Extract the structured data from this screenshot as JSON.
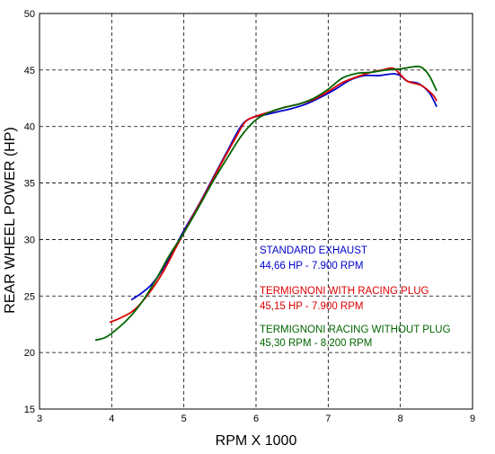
{
  "chart_data": {
    "type": "line",
    "title": "",
    "xlabel": "RPM X 1000",
    "ylabel": "REAR WHEEL POWER (HP)",
    "xlim": [
      3,
      9
    ],
    "ylim": [
      15,
      50
    ],
    "x_ticks": [
      "3",
      "4",
      "5",
      "6",
      "7",
      "8",
      "9"
    ],
    "y_ticks": [
      "15",
      "20",
      "25",
      "30",
      "35",
      "40",
      "45",
      "50"
    ],
    "grid": true,
    "series": [
      {
        "color": "#0000cc",
        "points": [
          [
            4.28,
            24.7
          ],
          [
            4.4,
            25.2
          ],
          [
            4.55,
            26.0
          ],
          [
            4.7,
            27.3
          ],
          [
            4.85,
            29.0
          ],
          [
            5.0,
            30.8
          ],
          [
            5.2,
            33.0
          ],
          [
            5.4,
            35.4
          ],
          [
            5.6,
            37.8
          ],
          [
            5.8,
            40.1
          ],
          [
            5.95,
            40.8
          ],
          [
            6.1,
            41.0
          ],
          [
            6.3,
            41.3
          ],
          [
            6.5,
            41.6
          ],
          [
            6.7,
            42.0
          ],
          [
            6.9,
            42.6
          ],
          [
            7.1,
            43.3
          ],
          [
            7.3,
            44.1
          ],
          [
            7.5,
            44.5
          ],
          [
            7.7,
            44.5
          ],
          [
            7.9,
            44.66
          ],
          [
            8.0,
            44.5
          ],
          [
            8.1,
            44.0
          ],
          [
            8.25,
            43.8
          ],
          [
            8.4,
            43.0
          ],
          [
            8.5,
            41.8
          ]
        ]
      },
      {
        "color": "#dd0000",
        "points": [
          [
            3.98,
            22.7
          ],
          [
            4.1,
            23.0
          ],
          [
            4.3,
            23.7
          ],
          [
            4.5,
            25.1
          ],
          [
            4.7,
            27.0
          ],
          [
            4.9,
            29.4
          ],
          [
            5.1,
            31.8
          ],
          [
            5.3,
            34.1
          ],
          [
            5.5,
            36.5
          ],
          [
            5.7,
            38.8
          ],
          [
            5.85,
            40.4
          ],
          [
            6.0,
            40.9
          ],
          [
            6.2,
            41.3
          ],
          [
            6.4,
            41.7
          ],
          [
            6.6,
            42.0
          ],
          [
            6.8,
            42.4
          ],
          [
            7.0,
            43.1
          ],
          [
            7.2,
            43.9
          ],
          [
            7.4,
            44.4
          ],
          [
            7.6,
            44.8
          ],
          [
            7.75,
            45.0
          ],
          [
            7.9,
            45.15
          ],
          [
            8.0,
            44.6
          ],
          [
            8.1,
            44.0
          ],
          [
            8.3,
            43.6
          ],
          [
            8.45,
            42.8
          ],
          [
            8.5,
            42.3
          ]
        ]
      },
      {
        "color": "#006600",
        "points": [
          [
            3.78,
            21.1
          ],
          [
            3.9,
            21.3
          ],
          [
            4.0,
            21.7
          ],
          [
            4.2,
            22.8
          ],
          [
            4.4,
            24.3
          ],
          [
            4.6,
            26.3
          ],
          [
            4.8,
            28.6
          ],
          [
            5.0,
            30.6
          ],
          [
            5.2,
            32.8
          ],
          [
            5.4,
            35.1
          ],
          [
            5.6,
            37.2
          ],
          [
            5.8,
            39.2
          ],
          [
            6.0,
            40.6
          ],
          [
            6.2,
            41.3
          ],
          [
            6.4,
            41.7
          ],
          [
            6.6,
            42.0
          ],
          [
            6.8,
            42.5
          ],
          [
            7.0,
            43.3
          ],
          [
            7.2,
            44.3
          ],
          [
            7.4,
            44.7
          ],
          [
            7.6,
            44.8
          ],
          [
            7.8,
            45.0
          ],
          [
            8.0,
            45.1
          ],
          [
            8.2,
            45.3
          ],
          [
            8.3,
            45.2
          ],
          [
            8.4,
            44.5
          ],
          [
            8.5,
            43.2
          ]
        ]
      }
    ],
    "annotations": [
      {
        "text": "STANDARD EXHAUST",
        "color": "#0000cc"
      },
      {
        "text": "44,66 HP - 7.900 RPM",
        "color": "#0000cc"
      },
      {
        "text": "TERMIGNONI WITH RACING PLUG",
        "color": "#dd0000"
      },
      {
        "text": "45,15 HP - 7.900 RPM",
        "color": "#dd0000"
      },
      {
        "text": "TERMIGNONI RACING WITHOUT PLUG",
        "color": "#006600"
      },
      {
        "text": "45,30 RPM - 8.200 RPM",
        "color": "#006600"
      }
    ]
  }
}
